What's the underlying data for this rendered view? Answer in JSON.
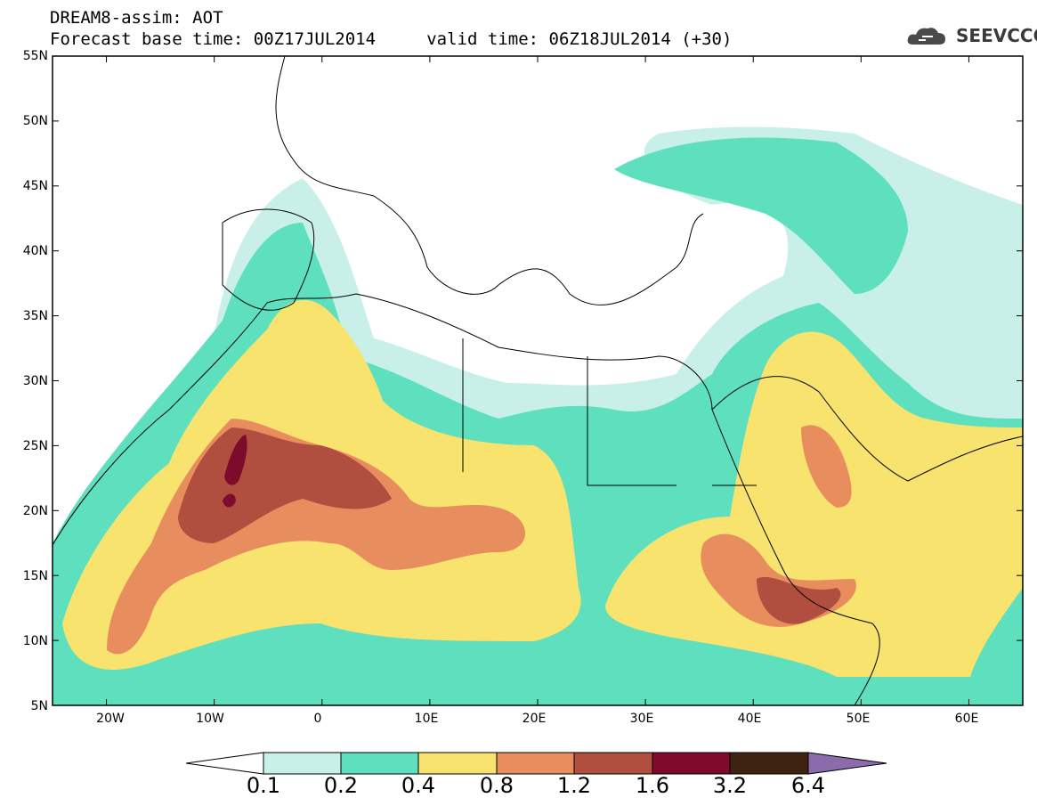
{
  "title_line1": "DREAM8-assim: AOT",
  "title_line2": "Forecast base time: 00Z17JUL2014     valid time: 06Z18JUL2014 (+30)",
  "logo": {
    "text": "SEEVCCC",
    "icon": "cloud-icon",
    "color": "#3a3a3a"
  },
  "map": {
    "variable": "AOT",
    "lon_range": [
      -25,
      65
    ],
    "lat_range": [
      5,
      55
    ],
    "lat_labels": [
      "55N",
      "50N",
      "45N",
      "40N",
      "35N",
      "30N",
      "25N",
      "20N",
      "15N",
      "10N",
      "5N"
    ],
    "lon_labels": [
      "20W",
      "10W",
      "0",
      "10E",
      "20E",
      "30E",
      "40E",
      "50E",
      "60E"
    ]
  },
  "colorbar": {
    "labels": [
      "0.1",
      "0.2",
      "0.4",
      "0.8",
      "1.2",
      "1.6",
      "3.2",
      "6.4"
    ],
    "colors": [
      "#ffffff",
      "#c8f0e8",
      "#5ee0be",
      "#f7e36e",
      "#e88e5e",
      "#b04e40",
      "#7e0b2c",
      "#3e2410",
      "#8a6cac"
    ]
  }
}
